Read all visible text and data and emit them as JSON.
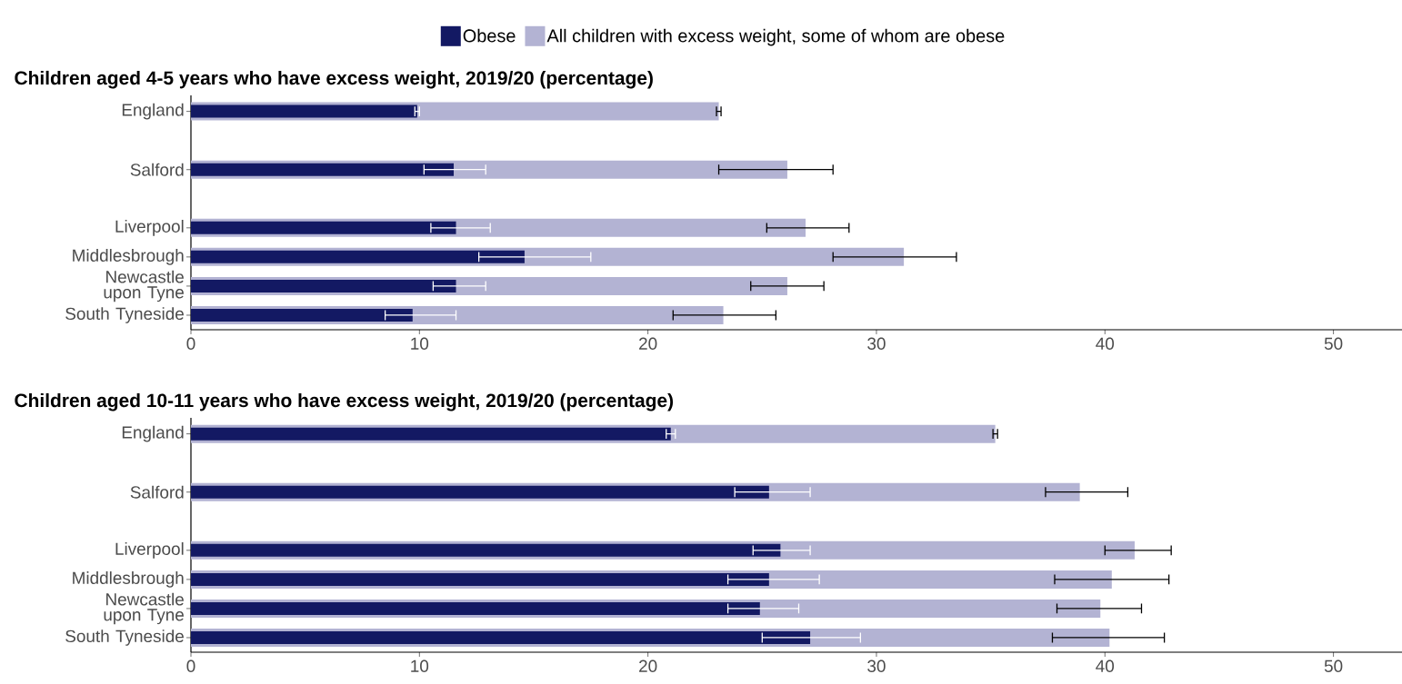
{
  "chart_data": [
    {
      "type": "bar",
      "orientation": "horizontal",
      "title": "Children aged 4-5 years who have excess weight, 2019/20 (percentage)",
      "categories": [
        "England",
        null,
        "Salford",
        null,
        "Liverpool",
        "Middlesbrough",
        "Newcastle upon Tyne",
        "South Tyneside"
      ],
      "series": [
        {
          "name": "Obese",
          "color": "#131963",
          "values": [
            9.9,
            null,
            11.5,
            null,
            11.6,
            14.6,
            11.6,
            9.7
          ],
          "errors": [
            [
              9.8,
              10.0
            ],
            null,
            [
              10.2,
              12.9
            ],
            null,
            [
              10.5,
              13.1
            ],
            [
              12.6,
              17.5
            ],
            [
              10.6,
              12.9
            ],
            [
              8.5,
              11.6
            ]
          ]
        },
        {
          "name": "All children with excess weight, some of whom are obese",
          "color": "#b3b3d3",
          "values": [
            23.1,
            null,
            26.1,
            null,
            26.9,
            31.2,
            26.1,
            23.3
          ],
          "errors": [
            [
              23.0,
              23.2
            ],
            null,
            [
              23.1,
              28.1
            ],
            null,
            [
              25.2,
              28.8
            ],
            [
              28.1,
              33.5
            ],
            [
              24.5,
              27.7
            ],
            [
              21.1,
              25.6
            ]
          ]
        }
      ],
      "xlim": [
        0,
        53
      ],
      "xticks": [
        0,
        10,
        20,
        30,
        40,
        50
      ],
      "legend": "top",
      "grid": false
    },
    {
      "type": "bar",
      "orientation": "horizontal",
      "title": "Children aged 10-11 years who have excess weight, 2019/20 (percentage)",
      "categories": [
        "England",
        null,
        "Salford",
        null,
        "Liverpool",
        "Middlesbrough",
        "Newcastle upon Tyne",
        "South Tyneside"
      ],
      "series": [
        {
          "color": "#131963",
          "values": [
            21.0,
            null,
            25.3,
            null,
            25.8,
            25.3,
            24.9,
            27.1
          ],
          "errors": [
            [
              20.8,
              21.2
            ],
            null,
            [
              23.8,
              27.1
            ],
            null,
            [
              24.6,
              27.1
            ],
            [
              23.5,
              27.5
            ],
            [
              23.5,
              26.6
            ],
            [
              25.0,
              29.3
            ]
          ]
        },
        {
          "color": "#b3b3d3",
          "values": [
            35.2,
            null,
            38.9,
            null,
            41.3,
            40.3,
            39.8,
            40.2
          ],
          "errors": [
            [
              35.1,
              35.3
            ],
            null,
            [
              37.4,
              41.0
            ],
            null,
            [
              40.0,
              42.9
            ],
            [
              37.8,
              42.8
            ],
            [
              37.9,
              41.6
            ],
            [
              37.7,
              42.6
            ]
          ]
        }
      ],
      "xlim": [
        0,
        53
      ],
      "xticks": [
        0,
        10,
        20,
        30,
        40,
        50
      ],
      "legend": false,
      "grid": false
    }
  ]
}
